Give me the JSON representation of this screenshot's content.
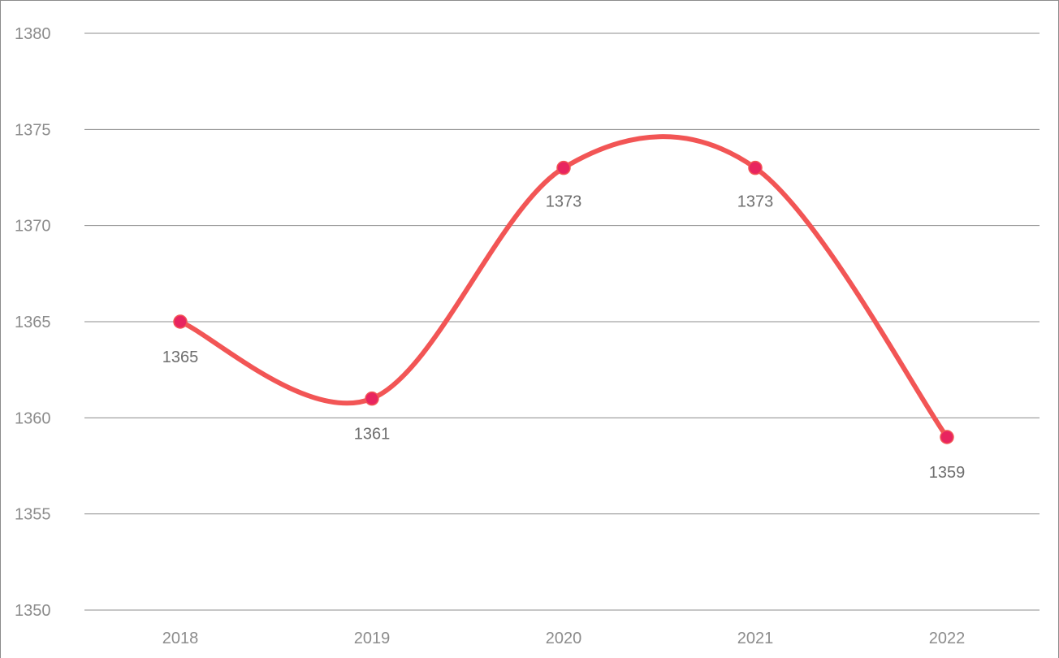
{
  "chart_data": {
    "type": "line",
    "title": "",
    "xlabel": "",
    "ylabel": "",
    "categories": [
      "2018",
      "2019",
      "2020",
      "2021",
      "2022"
    ],
    "series": [
      {
        "values": [
          1365,
          1361,
          1373,
          1373,
          1359
        ],
        "color": "#f25555",
        "marker_color": "#e8245f",
        "smooth": true,
        "data_labels": [
          "1365",
          "1361",
          "1373",
          "1373",
          "1359"
        ]
      }
    ],
    "ylim": [
      1350,
      1380
    ],
    "yticks": [
      "1350",
      "1355",
      "1360",
      "1365",
      "1370",
      "1375",
      "1380"
    ],
    "grid": true,
    "legend": "none"
  },
  "colors": {
    "gridline": "#8c8c8c",
    "frame": "#8c8c8c",
    "tick_text": "#8c8c8c",
    "data_label_text": "#6e6e6e"
  }
}
